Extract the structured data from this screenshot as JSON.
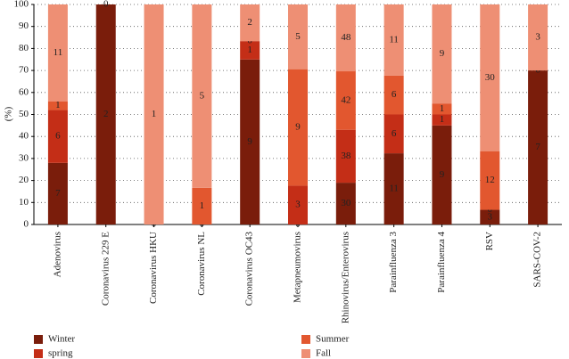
{
  "chart_data": {
    "type": "bar",
    "stacked": "percent",
    "y_label": "(%)",
    "categories": [
      "Adenovirus",
      "Coronavirus 229 E",
      "Coronavirus HKU",
      "Coronavirus NL",
      "Coronavirus OC43",
      "Metapneumovirus",
      "Rhinovirus/Enterovirus",
      "Parainfluenza 3",
      "Parainfluenza 4",
      "RSV",
      "SARS-COV-2"
    ],
    "series": [
      {
        "name": "Winter",
        "color": "#7a1d0b",
        "values": [
          7,
          2,
          0,
          0,
          9,
          0,
          30,
          11,
          9,
          3,
          7
        ]
      },
      {
        "name": "spring",
        "color": "#c42e17",
        "values": [
          6,
          null,
          null,
          null,
          1,
          3,
          38,
          6,
          1,
          0,
          null
        ]
      },
      {
        "name": "Summer",
        "color": "#e2572f",
        "values": [
          1,
          null,
          null,
          1,
          0,
          9,
          42,
          6,
          1,
          12,
          0
        ]
      },
      {
        "name": "Fall",
        "color": "#ee8f74",
        "values": [
          11,
          0,
          1,
          5,
          2,
          5,
          48,
          11,
          9,
          30,
          3
        ]
      }
    ],
    "ylim": [
      0,
      100
    ],
    "yticks": [
      0,
      10,
      20,
      30,
      40,
      50,
      60,
      70,
      80,
      90,
      100
    ],
    "grid": true
  }
}
